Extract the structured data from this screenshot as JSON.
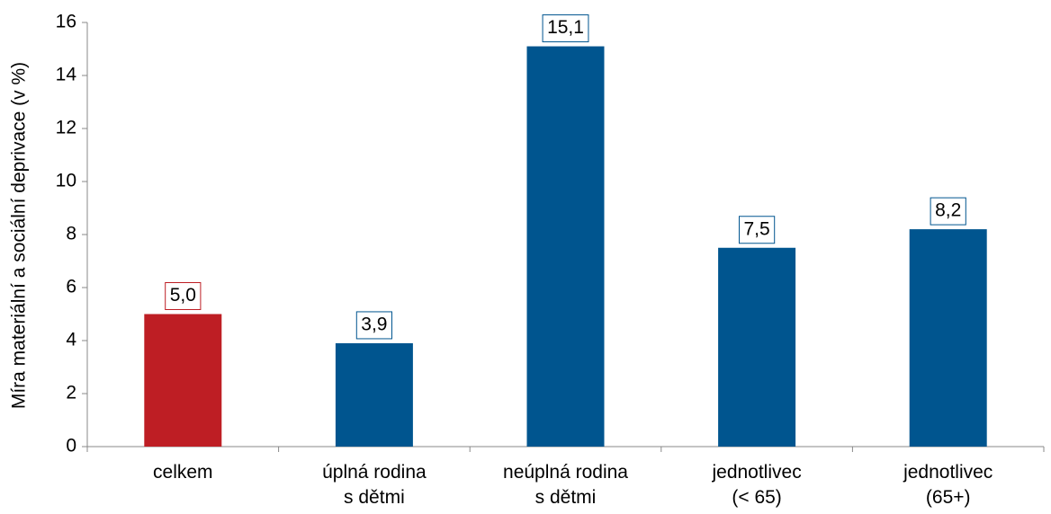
{
  "chart_data": {
    "type": "bar",
    "y_label": "Míra materiální  a sociální  deprivace (v %)",
    "categories": [
      "celkem",
      "úplná rodina\ns dětmi",
      "neúplná rodina\ns dětmi",
      "jednotlivec\n(< 65)",
      "jednotlivec\n(65+)"
    ],
    "values": [
      5.0,
      3.9,
      15.1,
      7.5,
      8.2
    ],
    "value_labels": [
      "5,0",
      "3,9",
      "15,1",
      "7,5",
      "8,2"
    ],
    "colors": [
      "#be1e24",
      "#00558f",
      "#00558f",
      "#00558f",
      "#00558f"
    ],
    "ylim": [
      0,
      16
    ],
    "yticks": [
      0,
      2,
      4,
      6,
      8,
      10,
      12,
      14,
      16
    ],
    "grid": false
  }
}
